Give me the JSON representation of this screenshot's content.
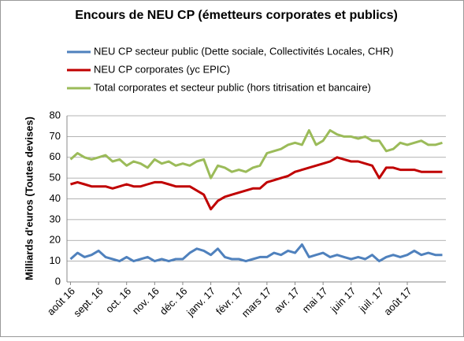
{
  "chart_data": {
    "type": "line",
    "title": "Encours de NEU CP (émetteurs  corporates et publics)",
    "y_label": "Milliards d'euros (Toutes devises)",
    "categories": [
      "août 16",
      null,
      null,
      null,
      "sept. 16",
      null,
      null,
      null,
      "oct. 16",
      null,
      null,
      null,
      "nov. 16",
      null,
      null,
      null,
      "déc. 16",
      null,
      null,
      null,
      "janv. 17",
      null,
      null,
      null,
      "févr. 17",
      null,
      null,
      null,
      "mars 17",
      null,
      null,
      null,
      "avr. 17",
      null,
      null,
      null,
      "mai 17",
      null,
      null,
      null,
      "juin 17",
      null,
      null,
      null,
      "juil. 17",
      null,
      null,
      null,
      "août 17",
      null,
      null,
      null,
      null,
      null
    ],
    "series": [
      {
        "name": "NEU CP secteur public (Dette sociale, Collectivités Locales, CHR)",
        "color": "#4f81bd",
        "values": [
          11,
          14,
          12,
          13,
          15,
          12,
          11,
          10,
          12,
          10,
          11,
          12,
          10,
          11,
          10,
          11,
          11,
          14,
          16,
          15,
          13,
          16,
          12,
          11,
          11,
          10,
          11,
          12,
          12,
          14,
          13,
          15,
          14,
          18,
          12,
          13,
          14,
          12,
          13,
          12,
          11,
          12,
          11,
          13,
          10,
          12,
          13,
          12,
          13,
          15,
          13,
          14,
          13,
          13
        ]
      },
      {
        "name": "NEU CP corporates (yc EPIC)",
        "color": "#c00000",
        "values": [
          47,
          48,
          47,
          46,
          46,
          46,
          45,
          46,
          47,
          46,
          46,
          47,
          48,
          48,
          47,
          46,
          46,
          46,
          44,
          42,
          35,
          39,
          41,
          42,
          43,
          44,
          45,
          45,
          48,
          49,
          50,
          51,
          53,
          54,
          55,
          56,
          57,
          58,
          60,
          59,
          58,
          58,
          57,
          56,
          50,
          55,
          55,
          54,
          54,
          54,
          53,
          53,
          53,
          53
        ]
      },
      {
        "name": "Total corporates et secteur public (hors titrisation et bancaire)",
        "color": "#9bbb59",
        "values": [
          59,
          62,
          60,
          59,
          60,
          61,
          58,
          59,
          56,
          58,
          57,
          55,
          59,
          57,
          58,
          56,
          57,
          56,
          58,
          59,
          50,
          56,
          55,
          53,
          54,
          53,
          55,
          56,
          62,
          63,
          64,
          66,
          67,
          66,
          73,
          66,
          68,
          73,
          71,
          70,
          70,
          69,
          70,
          68,
          68,
          63,
          64,
          67,
          66,
          67,
          68,
          66,
          66,
          67
        ]
      }
    ],
    "ylim": [
      0,
      80
    ],
    "yticks": [
      0,
      10,
      20,
      30,
      40,
      50,
      60,
      70,
      80
    ],
    "grid": true
  }
}
